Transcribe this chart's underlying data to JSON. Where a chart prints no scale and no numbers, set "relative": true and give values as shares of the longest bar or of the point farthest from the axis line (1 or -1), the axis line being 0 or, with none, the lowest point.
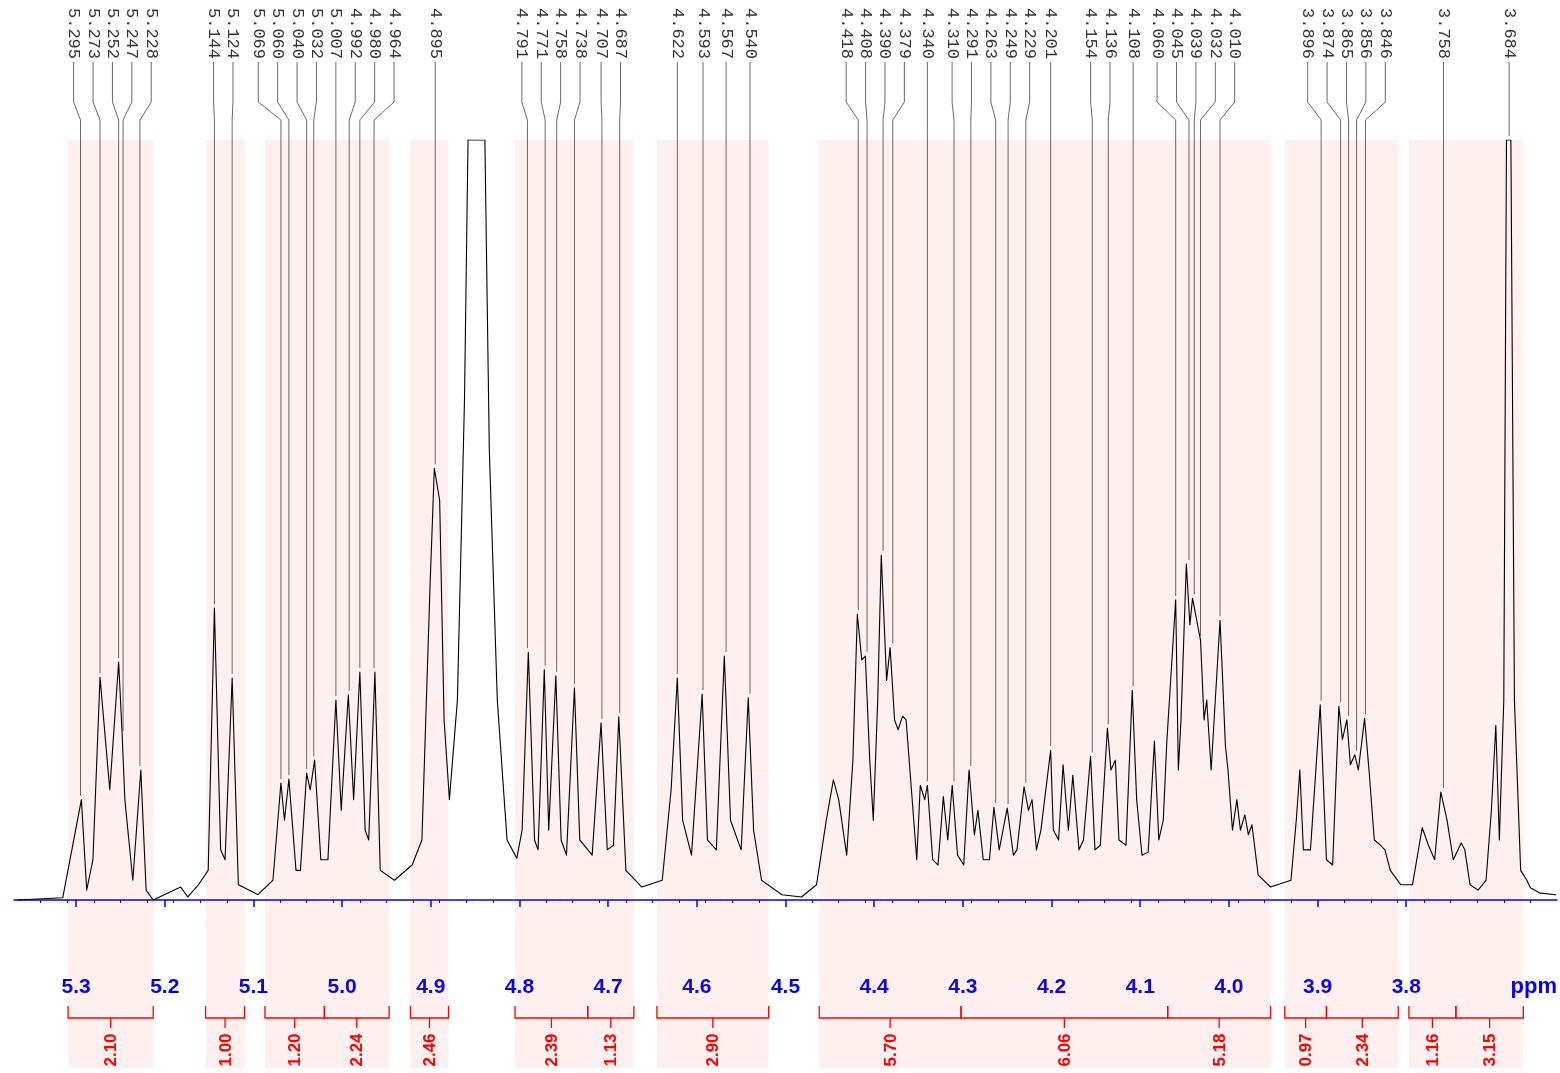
{
  "chart_data": {
    "type": "line",
    "relative": true,
    "xlabel": "ppm",
    "tick_labels": "x",
    "xlim": [
      5.37,
      3.63
    ],
    "xticks": [
      5.3,
      5.2,
      5.1,
      {
        "value": 5,
        "label": "5.0"
      },
      4.9,
      4.8,
      4.7,
      4.6,
      4.5,
      4.4,
      4.3,
      4.2,
      4.1,
      {
        "value": 4,
        "label": "4.0"
      },
      3.9,
      3.8
    ],
    "x": [
      5.366,
      5.315,
      5.294,
      5.288,
      5.281,
      5.273,
      5.262,
      5.252,
      5.248,
      5.245,
      5.236,
      5.227,
      5.221,
      5.213,
      5.182,
      5.174,
      5.162,
      5.151,
      5.144,
      5.137,
      5.132,
      5.124,
      5.117,
      5.095,
      5.078,
      5.069,
      5.065,
      5.06,
      5.052,
      5.047,
      5.04,
      5.036,
      5.031,
      5.024,
      5.016,
      5.007,
      5.001,
      4.993,
      4.987,
      4.98,
      4.974,
      4.97,
      4.963,
      4.957,
      4.941,
      4.921,
      4.91,
      4.901,
      4.896,
      4.89,
      4.885,
      4.879,
      4.87,
      4.862,
      4.858,
      4.839,
      4.834,
      4.825,
      4.814,
      4.803,
      4.797,
      4.79,
      4.783,
      4.779,
      4.772,
      4.767,
      4.759,
      4.753,
      4.747,
      4.738,
      4.732,
      4.718,
      4.708,
      4.701,
      4.694,
      4.688,
      4.68,
      4.662,
      4.639,
      4.629,
      4.622,
      4.616,
      4.606,
      4.594,
      4.588,
      4.578,
      4.569,
      4.562,
      4.55,
      4.542,
      4.536,
      4.527,
      4.504,
      4.482,
      4.465,
      4.454,
      4.446,
      4.44,
      4.431,
      4.424,
      4.419,
      4.414,
      4.41,
      4.405,
      4.401,
      4.396,
      4.392,
      4.386,
      4.382,
      4.377,
      4.373,
      4.368,
      4.364,
      4.358,
      4.352,
      4.348,
      4.343,
      4.34,
      4.334,
      4.328,
      4.322,
      4.317,
      4.312,
      4.306,
      4.299,
      4.293,
      4.287,
      4.283,
      4.277,
      4.27,
      4.265,
      4.259,
      4.25,
      4.243,
      4.239,
      4.231,
      4.226,
      4.222,
      4.217,
      4.212,
      4.201,
      4.198,
      4.192,
      4.187,
      4.181,
      4.176,
      4.169,
      4.164,
      4.156,
      4.151,
      4.145,
      4.137,
      4.133,
      4.128,
      4.124,
      4.116,
      4.109,
      4.104,
      4.098,
      4.091,
      4.084,
      4.079,
      4.074,
      4.07,
      4.06,
      4.057,
      4.054,
      4.048,
      4.044,
      4.041,
      4.032,
      4.028,
      4.025,
      4.02,
      4.01,
      4.007,
      4.004,
      4.001,
      3.996,
      3.991,
      3.987,
      3.982,
      3.978,
      3.974,
      3.967,
      3.953,
      3.93,
      3.924,
      3.92,
      3.916,
      3.908,
      3.897,
      3.89,
      3.883,
      3.876,
      3.872,
      3.867,
      3.863,
      3.858,
      3.854,
      3.847,
      3.842,
      3.836,
      3.829,
      3.824,
      3.818,
      3.806,
      3.793,
      3.782,
      3.775,
      3.768,
      3.761,
      3.754,
      3.747,
      3.738,
      3.734,
      3.728,
      3.719,
      3.71,
      3.704,
      3.699,
      3.695,
      3.69,
      3.687,
      3.682,
      3.678,
      3.671,
      3.664,
      3.66,
      3.649,
      3.631
    ],
    "series": [
      {
        "color": "#000000",
        "values": [
          0,
          0.003,
          0.132,
          0.013,
          0.053,
          0.293,
          0.145,
          0.313,
          0.217,
          0.132,
          0.026,
          0.171,
          0.013,
          0,
          0.017,
          0.004,
          0.02,
          0.039,
          0.384,
          0.066,
          0.053,
          0.292,
          0.02,
          0.007,
          0.026,
          0.154,
          0.105,
          0.159,
          0.039,
          0.039,
          0.167,
          0.145,
          0.184,
          0.053,
          0.053,
          0.263,
          0.118,
          0.27,
          0.132,
          0.3,
          0.092,
          0.079,
          0.3,
          0.039,
          0.026,
          0.046,
          0.079,
          0.408,
          0.568,
          0.526,
          0.237,
          0.132,
          0.263,
          0.658,
          1,
          1,
          0.592,
          0.263,
          0.079,
          0.055,
          0.092,
          0.326,
          0.079,
          0.066,
          0.303,
          0.092,
          0.295,
          0.079,
          0.059,
          0.279,
          0.079,
          0.059,
          0.233,
          0.066,
          0.072,
          0.241,
          0.039,
          0.017,
          0.026,
          0.145,
          0.292,
          0.105,
          0.059,
          0.271,
          0.079,
          0.066,
          0.321,
          0.105,
          0.066,
          0.266,
          0.092,
          0.026,
          0.007,
          0.004,
          0.02,
          0.105,
          0.158,
          0.132,
          0.059,
          0.184,
          0.376,
          0.316,
          0.321,
          0.184,
          0.105,
          0.263,
          0.454,
          0.289,
          0.332,
          0.237,
          0.224,
          0.242,
          0.237,
          0.145,
          0.053,
          0.151,
          0.132,
          0.151,
          0.053,
          0.046,
          0.136,
          0.079,
          0.151,
          0.059,
          0.046,
          0.171,
          0.086,
          0.118,
          0.053,
          0.053,
          0.122,
          0.066,
          0.121,
          0.059,
          0.066,
          0.149,
          0.118,
          0.132,
          0.066,
          0.092,
          0.197,
          0.092,
          0.079,
          0.178,
          0.092,
          0.164,
          0.066,
          0.079,
          0.189,
          0.066,
          0.072,
          0.226,
          0.171,
          0.184,
          0.079,
          0.072,
          0.276,
          0.132,
          0.059,
          0.063,
          0.209,
          0.079,
          0.105,
          0.208,
          0.395,
          0.171,
          0.237,
          0.442,
          0.362,
          0.397,
          0.342,
          0.237,
          0.263,
          0.171,
          0.368,
          0.289,
          0.204,
          0.171,
          0.092,
          0.132,
          0.092,
          0.112,
          0.086,
          0.099,
          0.033,
          0.017,
          0.026,
          0.105,
          0.171,
          0.066,
          0.066,
          0.257,
          0.053,
          0.046,
          0.255,
          0.211,
          0.237,
          0.178,
          0.191,
          0.171,
          0.239,
          0.171,
          0.079,
          0.072,
          0.066,
          0.039,
          0.02,
          0.02,
          0.095,
          0.072,
          0.053,
          0.142,
          0.105,
          0.053,
          0.075,
          0.066,
          0.02,
          0.013,
          0.026,
          0.118,
          0.23,
          0.079,
          0.263,
          1,
          1,
          0.263,
          0.039,
          0.026,
          0.016,
          0.009,
          0.007
        ]
      }
    ],
    "annotations": [
      {
        "text": "5.295",
        "x": 5.295,
        "y": 0.132
      },
      {
        "text": "5.273",
        "x": 5.273,
        "y": 0.293
      },
      {
        "text": "5.252",
        "x": 5.252,
        "y": 0.313
      },
      {
        "text": "5.247",
        "x": 5.247,
        "y": 0.217
      },
      {
        "text": "5.228",
        "x": 5.228,
        "y": 0.171
      },
      {
        "text": "5.144",
        "x": 5.144,
        "y": 0.384
      },
      {
        "text": "5.124",
        "x": 5.124,
        "y": 0.292
      },
      {
        "text": "5.069",
        "x": 5.069,
        "y": 0.154
      },
      {
        "text": "5.060",
        "x": 5.06,
        "y": 0.159
      },
      {
        "text": "5.040",
        "x": 5.04,
        "y": 0.167
      },
      {
        "text": "5.032",
        "x": 5.032,
        "y": 0.184
      },
      {
        "text": "5.007",
        "x": 5.007,
        "y": 0.263
      },
      {
        "text": "4.992",
        "x": 4.992,
        "y": 0.27
      },
      {
        "text": "4.980",
        "x": 4.98,
        "y": 0.3
      },
      {
        "text": "4.964",
        "x": 4.964,
        "y": 0.3
      },
      {
        "text": "4.895",
        "x": 4.895,
        "y": 0.568
      },
      {
        "text": "4.791",
        "x": 4.791,
        "y": 0.326
      },
      {
        "text": "4.771",
        "x": 4.771,
        "y": 0.303
      },
      {
        "text": "4.758",
        "x": 4.758,
        "y": 0.295
      },
      {
        "text": "4.738",
        "x": 4.738,
        "y": 0.279
      },
      {
        "text": "4.707",
        "x": 4.707,
        "y": 0.233
      },
      {
        "text": "4.687",
        "x": 4.687,
        "y": 0.241
      },
      {
        "text": "4.622",
        "x": 4.622,
        "y": 0.292
      },
      {
        "text": "4.593",
        "x": 4.593,
        "y": 0.271
      },
      {
        "text": "4.567",
        "x": 4.567,
        "y": 0.321
      },
      {
        "text": "4.540",
        "x": 4.54,
        "y": 0.266
      },
      {
        "text": "4.418",
        "x": 4.418,
        "y": 0.376
      },
      {
        "text": "4.408",
        "x": 4.408,
        "y": 0.321
      },
      {
        "text": "4.390",
        "x": 4.39,
        "y": 0.454
      },
      {
        "text": "4.379",
        "x": 4.379,
        "y": 0.332
      },
      {
        "text": "4.340",
        "x": 4.34,
        "y": 0.151
      },
      {
        "text": "4.310",
        "x": 4.31,
        "y": 0.151
      },
      {
        "text": "4.291",
        "x": 4.291,
        "y": 0.171
      },
      {
        "text": "4.263",
        "x": 4.263,
        "y": 0.122
      },
      {
        "text": "4.249",
        "x": 4.249,
        "y": 0.121
      },
      {
        "text": "4.229",
        "x": 4.229,
        "y": 0.149
      },
      {
        "text": "4.201",
        "x": 4.201,
        "y": 0.197
      },
      {
        "text": "4.154",
        "x": 4.154,
        "y": 0.189
      },
      {
        "text": "4.136",
        "x": 4.136,
        "y": 0.226
      },
      {
        "text": "4.108",
        "x": 4.108,
        "y": 0.276
      },
      {
        "text": "4.060",
        "x": 4.06,
        "y": 0.395
      },
      {
        "text": "4.045",
        "x": 4.045,
        "y": 0.442
      },
      {
        "text": "4.039",
        "x": 4.039,
        "y": 0.397
      },
      {
        "text": "4.032",
        "x": 4.032,
        "y": 0.342
      },
      {
        "text": "4.010",
        "x": 4.01,
        "y": 0.368
      },
      {
        "text": "3.896",
        "x": 3.896,
        "y": 0.257
      },
      {
        "text": "3.874",
        "x": 3.874,
        "y": 0.255
      },
      {
        "text": "3.865",
        "x": 3.865,
        "y": 0.237
      },
      {
        "text": "3.856",
        "x": 3.856,
        "y": 0.191
      },
      {
        "text": "3.846",
        "x": 3.846,
        "y": 0.239
      },
      {
        "text": "3.758",
        "x": 3.758,
        "y": 0.142
      },
      {
        "text": "3.684",
        "x": 3.684,
        "y": 1
      }
    ],
    "bands": [
      {
        "axis": "x",
        "from": 5.309,
        "to": 5.213,
        "label": "2.10",
        "color": "#ff0000"
      },
      {
        "axis": "x",
        "from": 5.154,
        "to": 5.11,
        "label": "1.00",
        "color": "#ff0000"
      },
      {
        "axis": "x",
        "from": 5.087,
        "to": 5.02,
        "label": "1.20",
        "color": "#ff0000"
      },
      {
        "axis": "x",
        "from": 5.02,
        "to": 4.947,
        "label": "2.24",
        "color": "#ff0000"
      },
      {
        "axis": "x",
        "from": 4.923,
        "to": 4.88,
        "label": "2.46",
        "color": "#ff0000"
      },
      {
        "axis": "x",
        "from": 4.805,
        "to": 4.723,
        "label": "2.39",
        "color": "#ff0000"
      },
      {
        "axis": "x",
        "from": 4.723,
        "to": 4.671,
        "label": "1.13",
        "color": "#ff0000"
      },
      {
        "axis": "x",
        "from": 4.645,
        "to": 4.519,
        "label": "2.90",
        "color": "#ff0000"
      },
      {
        "axis": "x",
        "from": 4.462,
        "to": 4.302,
        "label": "5.70",
        "color": "#ff0000"
      },
      {
        "axis": "x",
        "from": 4.302,
        "to": 4.069,
        "label": "6.06",
        "color": "#ff0000"
      },
      {
        "axis": "x",
        "from": 4.069,
        "to": 3.953,
        "label": "5.18",
        "color": "#ff0000"
      },
      {
        "axis": "x",
        "from": 3.937,
        "to": 3.89,
        "label": "0.97",
        "color": "#ff0000"
      },
      {
        "axis": "x",
        "from": 3.89,
        "to": 3.809,
        "label": "2.34",
        "color": "#ff0000"
      },
      {
        "axis": "x",
        "from": 3.797,
        "to": 3.744,
        "label": "1.16",
        "color": "#ff0000"
      },
      {
        "axis": "x",
        "from": 3.744,
        "to": 3.668,
        "label": "3.15",
        "color": "#ff0000"
      }
    ]
  }
}
